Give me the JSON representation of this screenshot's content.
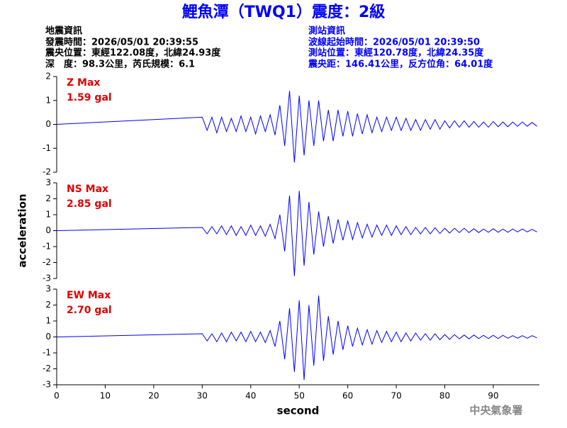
{
  "header": {
    "title": "鯉魚潭（TWQ1）震度：2級",
    "event_info": [
      "地震資訊",
      "發震時間：2026/05/01 20:39:55",
      "震央位置：東經122.08度，北緯24.93度",
      "深　度：98.3公里，芮氏規模：6.1"
    ],
    "station_info": [
      "測站資訊",
      "波線起始時間：2026/05/01 20:39:50",
      "測站位置：東經120.78度，北緯24.35度",
      "震央距：146.41公里，反方位角：64.01度"
    ]
  },
  "footer": "中央氣象署",
  "chart_data": [
    {
      "type": "line",
      "label": "Z Max",
      "max_label": "1.59 gal",
      "color": "#0000ff",
      "label_color": "#e00000",
      "xlim": [
        0,
        99.5
      ],
      "ylim": [
        -2,
        2
      ],
      "yticks": [
        -2,
        -1,
        0,
        1,
        2
      ],
      "x": [
        0,
        30,
        31,
        32,
        33,
        34,
        35,
        36,
        37,
        38,
        39,
        40,
        41,
        42,
        43,
        44,
        45,
        46,
        47,
        48,
        49,
        50,
        51,
        52,
        53,
        54,
        55,
        56,
        57,
        58,
        59,
        60,
        61,
        62,
        63,
        64,
        65,
        66,
        67,
        68,
        69,
        70,
        71,
        72,
        73,
        74,
        75,
        76,
        77,
        78,
        79,
        80,
        81,
        82,
        83,
        84,
        85,
        86,
        87,
        88,
        89,
        90,
        91,
        92,
        93,
        94,
        95,
        96,
        97,
        98,
        99
      ],
      "values": [
        0,
        0.3,
        -0.25,
        0.3,
        -0.35,
        0.3,
        -0.3,
        0.25,
        -0.3,
        0.35,
        -0.3,
        0.3,
        -0.4,
        0.35,
        -0.3,
        0.4,
        -0.45,
        0.8,
        -0.9,
        1.4,
        -1.59,
        1.2,
        -1.3,
        1.0,
        -0.9,
        1.0,
        -0.7,
        0.6,
        -0.7,
        0.6,
        -0.5,
        0.55,
        -0.5,
        0.45,
        -0.4,
        0.4,
        -0.35,
        0.3,
        -0.3,
        0.3,
        -0.25,
        0.3,
        -0.25,
        0.25,
        -0.25,
        0.2,
        -0.25,
        0.2,
        -0.2,
        0.2,
        -0.2,
        0.15,
        -0.15,
        0.15,
        -0.12,
        0.15,
        -0.12,
        0.12,
        -0.12,
        0.1,
        -0.12,
        0.12,
        -0.1,
        0.1,
        -0.1,
        0.1,
        -0.08,
        0.1,
        -0.08,
        0.08,
        -0.08
      ]
    },
    {
      "type": "line",
      "label": "NS Max",
      "max_label": "2.85 gal",
      "color": "#0000ff",
      "label_color": "#e00000",
      "ylabel": "acceleration",
      "xlim": [
        0,
        99.5
      ],
      "ylim": [
        -3,
        3
      ],
      "yticks": [
        -3,
        -2,
        -1,
        0,
        1,
        2,
        3
      ],
      "x": [
        0,
        30,
        31,
        32,
        33,
        34,
        35,
        36,
        37,
        38,
        39,
        40,
        41,
        42,
        43,
        44,
        45,
        46,
        47,
        48,
        49,
        50,
        51,
        52,
        53,
        54,
        55,
        56,
        57,
        58,
        59,
        60,
        61,
        62,
        63,
        64,
        65,
        66,
        67,
        68,
        69,
        70,
        71,
        72,
        73,
        74,
        75,
        76,
        77,
        78,
        79,
        80,
        81,
        82,
        83,
        84,
        85,
        86,
        87,
        88,
        89,
        90,
        91,
        92,
        93,
        94,
        95,
        96,
        97,
        98,
        99
      ],
      "values": [
        0,
        0.2,
        -0.2,
        0.25,
        -0.2,
        0.3,
        -0.25,
        0.3,
        -0.3,
        0.25,
        -0.3,
        0.35,
        -0.3,
        0.3,
        -0.35,
        0.4,
        -0.5,
        1.0,
        -1.3,
        2.2,
        -2.85,
        2.5,
        -2.2,
        1.8,
        -1.5,
        1.2,
        -1.0,
        0.9,
        -0.8,
        0.7,
        -0.6,
        0.6,
        -0.55,
        0.5,
        -0.45,
        0.4,
        -0.4,
        0.35,
        -0.3,
        0.35,
        -0.3,
        0.3,
        -0.25,
        0.25,
        -0.25,
        0.2,
        -0.2,
        0.2,
        -0.2,
        0.18,
        -0.18,
        0.15,
        -0.15,
        0.15,
        -0.12,
        0.15,
        -0.12,
        0.12,
        -0.12,
        0.1,
        -0.1,
        0.12,
        -0.1,
        0.1,
        -0.1,
        0.1,
        -0.08,
        0.1,
        -0.08,
        0.08,
        -0.08
      ]
    },
    {
      "type": "line",
      "label": "EW Max",
      "max_label": "2.70 gal",
      "color": "#0000ff",
      "label_color": "#e00000",
      "xlabel": "second",
      "xlim": [
        0,
        99.5
      ],
      "ylim": [
        -3,
        3
      ],
      "yticks": [
        -3,
        -2,
        -1,
        0,
        1,
        2,
        3
      ],
      "xticks": [
        0,
        10,
        20,
        30,
        40,
        50,
        60,
        70,
        80,
        90
      ],
      "x": [
        0,
        30,
        31,
        32,
        33,
        34,
        35,
        36,
        37,
        38,
        39,
        40,
        41,
        42,
        43,
        44,
        45,
        46,
        47,
        48,
        49,
        50,
        51,
        52,
        53,
        54,
        55,
        56,
        57,
        58,
        59,
        60,
        61,
        62,
        63,
        64,
        65,
        66,
        67,
        68,
        69,
        70,
        71,
        72,
        73,
        74,
        75,
        76,
        77,
        78,
        79,
        80,
        81,
        82,
        83,
        84,
        85,
        86,
        87,
        88,
        89,
        90,
        91,
        92,
        93,
        94,
        95,
        96,
        97,
        98,
        99
      ],
      "values": [
        0,
        0.2,
        -0.25,
        0.2,
        -0.3,
        0.25,
        -0.3,
        0.3,
        -0.25,
        0.3,
        -0.3,
        0.35,
        -0.3,
        0.3,
        -0.35,
        0.4,
        -0.6,
        1.0,
        -1.4,
        1.8,
        -2.2,
        2.3,
        -2.7,
        2.0,
        -1.8,
        2.6,
        -1.5,
        1.3,
        -1.1,
        1.0,
        -0.8,
        0.7,
        -0.6,
        0.55,
        -0.5,
        0.45,
        -0.45,
        0.4,
        -0.35,
        0.35,
        -0.3,
        0.3,
        -0.3,
        0.25,
        -0.25,
        0.25,
        -0.2,
        0.2,
        -0.2,
        0.2,
        -0.18,
        0.15,
        -0.15,
        0.15,
        -0.12,
        0.12,
        -0.12,
        0.12,
        -0.1,
        0.1,
        -0.1,
        0.1,
        -0.1,
        0.1,
        -0.08,
        0.08,
        -0.08,
        0.08,
        -0.08,
        0.08,
        -0.06
      ]
    }
  ]
}
